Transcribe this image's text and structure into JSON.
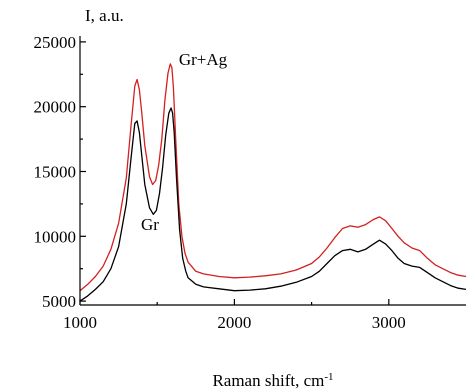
{
  "chart_data": {
    "type": "line",
    "title": "",
    "xlabel": "Raman shift, cm",
    "xlabel_superscript": "-1",
    "ylabel": "I, a.u.",
    "xlim": [
      1000,
      3500
    ],
    "ylim": [
      4700,
      25300
    ],
    "x_ticks": [
      1000,
      2000,
      3000
    ],
    "x_tick_labels": [
      "1000",
      "2000",
      "3000"
    ],
    "y_ticks": [
      5000,
      10000,
      15000,
      20000,
      25000
    ],
    "y_tick_labels": [
      "5000",
      "10000",
      "15000",
      "20000",
      "25000"
    ],
    "grid": false,
    "legend": "none",
    "annotations": [
      {
        "text": "Gr+Ag",
        "x": 1640,
        "y": 23200
      },
      {
        "text": "Gr",
        "x": 1395,
        "y": 10500
      }
    ],
    "series": [
      {
        "color": "#d42020",
        "x": [
          1000,
          1050,
          1100,
          1150,
          1200,
          1250,
          1300,
          1330,
          1355,
          1370,
          1385,
          1400,
          1420,
          1450,
          1470,
          1490,
          1510,
          1530,
          1550,
          1570,
          1585,
          1595,
          1605,
          1620,
          1640,
          1660,
          1680,
          1700,
          1750,
          1800,
          1900,
          2000,
          2100,
          2200,
          2300,
          2400,
          2500,
          2550,
          2600,
          2650,
          2700,
          2750,
          2800,
          2850,
          2900,
          2940,
          2980,
          3020,
          3060,
          3100,
          3150,
          3200,
          3250,
          3300,
          3350,
          3400,
          3450,
          3500
        ],
        "y": [
          5800,
          6300,
          6900,
          7700,
          9000,
          11000,
          14500,
          18500,
          21600,
          22100,
          21300,
          19500,
          17000,
          14600,
          14000,
          14300,
          15500,
          17500,
          20500,
          22600,
          23300,
          23000,
          21500,
          17500,
          12500,
          10000,
          8700,
          8000,
          7300,
          7100,
          6900,
          6800,
          6850,
          6950,
          7100,
          7400,
          7900,
          8400,
          9100,
          9900,
          10600,
          10800,
          10700,
          10900,
          11300,
          11500,
          11200,
          10600,
          10000,
          9500,
          9100,
          8900,
          8300,
          7800,
          7500,
          7200,
          7000,
          6900
        ]
      },
      {
        "color": "#000000",
        "x": [
          1000,
          1050,
          1100,
          1150,
          1200,
          1250,
          1300,
          1330,
          1355,
          1370,
          1385,
          1400,
          1420,
          1450,
          1475,
          1495,
          1515,
          1535,
          1555,
          1575,
          1590,
          1600,
          1610,
          1625,
          1645,
          1665,
          1685,
          1700,
          1750,
          1800,
          1900,
          2000,
          2100,
          2200,
          2300,
          2400,
          2500,
          2550,
          2600,
          2650,
          2700,
          2750,
          2800,
          2850,
          2900,
          2940,
          2980,
          3020,
          3060,
          3100,
          3150,
          3200,
          3250,
          3300,
          3350,
          3400,
          3450,
          3500
        ],
        "y": [
          5000,
          5400,
          5900,
          6500,
          7500,
          9200,
          12500,
          16000,
          18700,
          18900,
          18000,
          16200,
          14000,
          12200,
          11700,
          12000,
          13300,
          15300,
          17800,
          19500,
          19900,
          19500,
          18000,
          14500,
          10500,
          8300,
          7300,
          6800,
          6300,
          6100,
          5950,
          5800,
          5850,
          5950,
          6150,
          6450,
          6900,
          7300,
          7900,
          8500,
          8900,
          9000,
          8800,
          9000,
          9400,
          9700,
          9400,
          8900,
          8300,
          7900,
          7700,
          7600,
          7200,
          6800,
          6500,
          6200,
          6000,
          5900
        ]
      }
    ]
  }
}
